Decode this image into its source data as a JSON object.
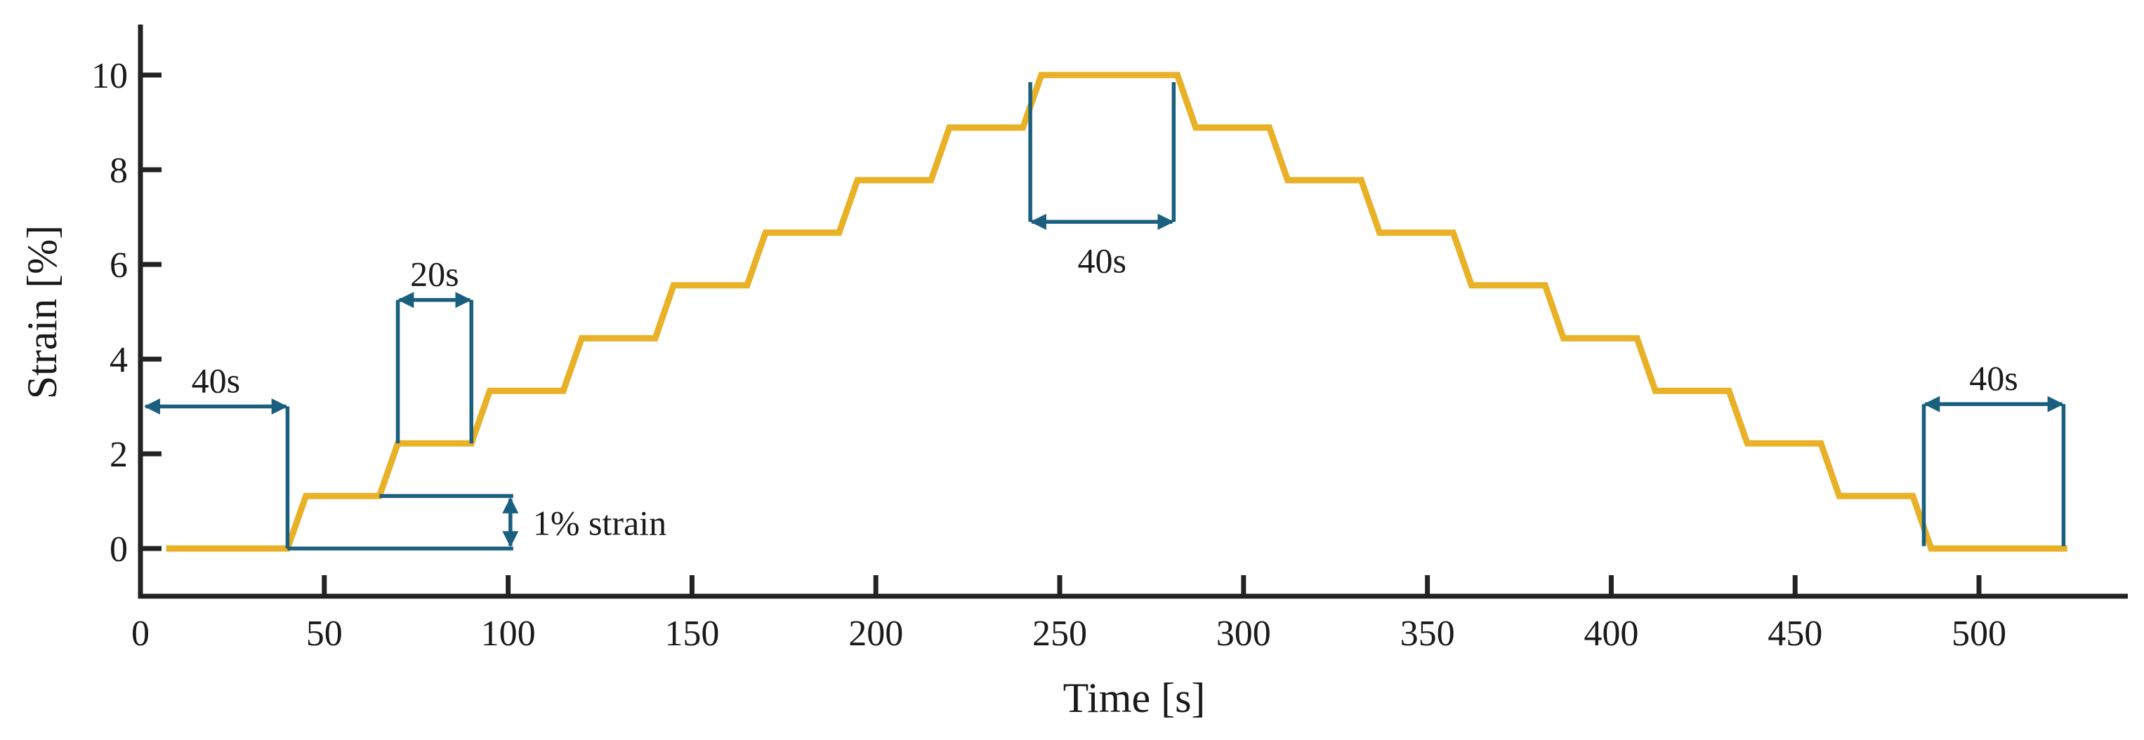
{
  "chart_data": {
    "type": "line",
    "xlabel": "Time [s]",
    "ylabel": "Strain [%]",
    "xlim": [
      0,
      540
    ],
    "ylim": [
      -1,
      11
    ],
    "xticks": [
      0,
      50,
      100,
      150,
      200,
      250,
      300,
      350,
      400,
      450,
      500
    ],
    "yticks": [
      0,
      2,
      4,
      6,
      8,
      10
    ],
    "grid": false,
    "series_color": "#E8B127",
    "annotation_color": "#1B5F7E",
    "axis_color": "#222222",
    "series": [
      {
        "x": [
          7,
          40,
          45,
          65,
          70,
          90,
          95,
          115,
          120,
          140,
          145,
          165,
          170,
          190,
          195,
          215,
          220,
          240,
          245,
          282,
          287,
          307,
          312,
          332,
          337,
          357,
          362,
          382,
          387,
          407,
          412,
          432,
          437,
          457,
          462,
          482,
          487,
          524
        ],
        "y": [
          0,
          0,
          1.11,
          1.11,
          2.22,
          2.22,
          3.33,
          3.33,
          4.44,
          4.44,
          5.56,
          5.56,
          6.67,
          6.67,
          7.78,
          7.78,
          8.89,
          8.89,
          10,
          10,
          8.89,
          8.89,
          7.78,
          7.78,
          6.67,
          6.67,
          5.56,
          5.56,
          4.44,
          4.44,
          3.33,
          3.33,
          2.22,
          2.22,
          1.11,
          1.11,
          0,
          0
        ]
      }
    ],
    "annotations": [
      {
        "label": "40s",
        "x1": 1,
        "x2": 40,
        "y": 3
      },
      {
        "label": "20s",
        "x1": 70,
        "x2": 90,
        "y": 5.25
      },
      {
        "label": "40s",
        "x1": 242,
        "x2": 281,
        "y": 6.9
      },
      {
        "label": "40s",
        "x1": 485,
        "x2": 523,
        "y": 3.05
      },
      {
        "label": "1% strain",
        "x": 101,
        "y1": 0,
        "y2": 1.11
      }
    ]
  }
}
